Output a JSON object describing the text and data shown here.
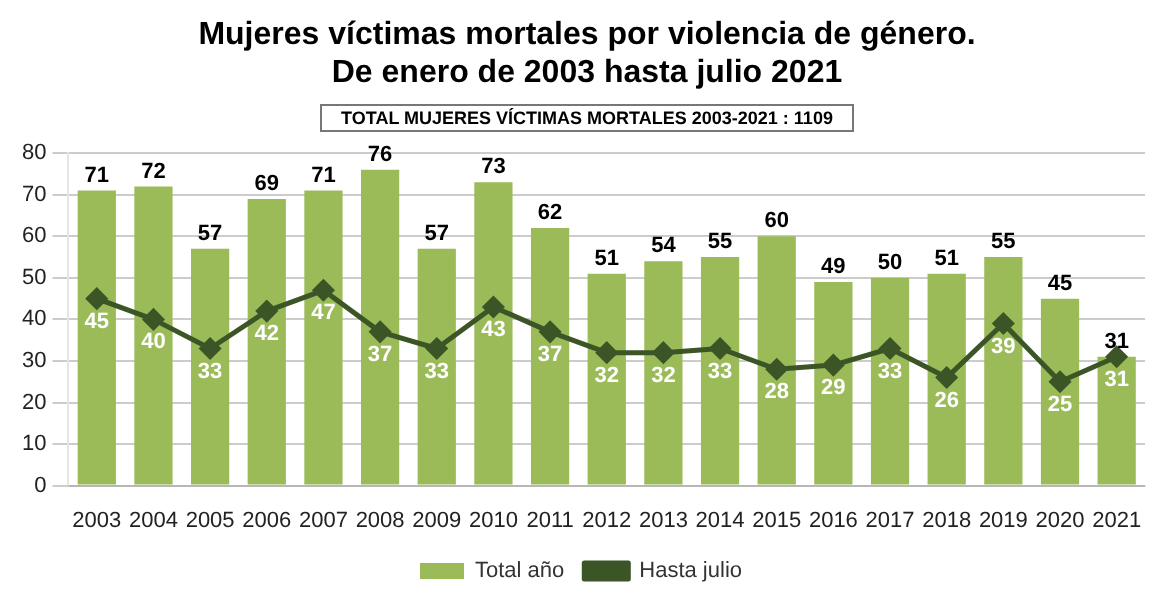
{
  "chart_data": {
    "type": "bar",
    "title": "Mujeres víctimas mortales por violencia de género.\nDe enero de 2003 hasta julio 2021",
    "annotations": [
      "TOTAL MUJERES VÍCTIMAS MORTALES 2003-2021 : 1109"
    ],
    "categories": [
      "2003",
      "2004",
      "2005",
      "2006",
      "2007",
      "2008",
      "2009",
      "2010",
      "2011",
      "2012",
      "2013",
      "2014",
      "2015",
      "2016",
      "2017",
      "2018",
      "2019",
      "2020",
      "2021"
    ],
    "series": [
      {
        "name": "Total año",
        "color": "#9bbb59",
        "values": [
          71,
          72,
          57,
          69,
          71,
          76,
          57,
          73,
          62,
          51,
          54,
          55,
          60,
          49,
          50,
          51,
          55,
          45,
          31
        ]
      },
      {
        "name": "Hasta julio",
        "type": "line",
        "color": "#3b5527",
        "values": [
          45,
          40,
          33,
          42,
          47,
          37,
          33,
          43,
          37,
          32,
          32,
          33,
          28,
          29,
          33,
          26,
          39,
          25,
          31
        ]
      }
    ],
    "ylim": [
      0,
      80
    ],
    "yticks": [
      0,
      10,
      20,
      30,
      40,
      50,
      60,
      70,
      80
    ],
    "grid": "y",
    "legend": "bottom",
    "marker": "diamond",
    "data_labels": true
  }
}
